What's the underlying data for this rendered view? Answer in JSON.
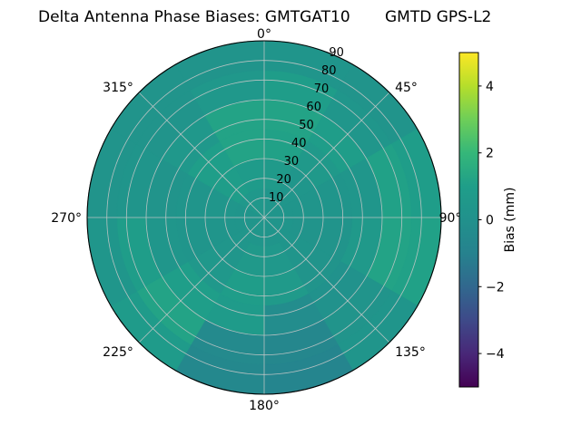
{
  "figure": {
    "title_left": "Delta Antenna Phase Biases: GMTGAT10",
    "title_right": "GMTD GPS-L2",
    "background": "#ffffff"
  },
  "chart_data": {
    "type": "heatmap",
    "subtype": "polar_filled_contour",
    "title": "Delta Antenna Phase Biases: GMTGAT10        GMTD GPS-L2",
    "theta_zero_location": "N",
    "theta_direction": "clockwise",
    "angular_tick_deg": [
      0,
      45,
      90,
      135,
      180,
      225,
      270,
      315
    ],
    "angular_tick_labels": [
      "0°",
      "45°",
      "90°",
      "135°",
      "180°",
      "225°",
      "270°",
      "315°"
    ],
    "radial_ticks": [
      10,
      20,
      30,
      40,
      50,
      60,
      70,
      80,
      90
    ],
    "radial_max": 90,
    "radial_label_angle_deg": 22.5,
    "grid_on": true,
    "grid_color": "#c8c8c8",
    "spine_color": "#000000",
    "colormap_name": "viridis",
    "colormap_stops": [
      "#440154",
      "#482878",
      "#3e4a89",
      "#31688e",
      "#26828e",
      "#21918c",
      "#1f9e89",
      "#35b779",
      "#6ece58",
      "#b5de2b",
      "#fde725"
    ],
    "colorbar": {
      "label": "Bias (mm)",
      "min": -5,
      "max": 5,
      "tick_values": [
        -4,
        -2,
        0,
        2,
        4
      ],
      "tick_labels": [
        "−4",
        "−2",
        "0",
        "2",
        "4"
      ]
    },
    "field": {
      "units": "mm",
      "azimuth_bin_edges_deg": [
        0,
        30,
        60,
        90,
        120,
        150,
        180,
        210,
        240,
        270,
        300,
        330,
        360
      ],
      "zenith_bin_edges_deg": [
        0,
        15,
        30,
        45,
        60,
        75,
        90
      ],
      "bias_mm_rings": [
        [
          0.4,
          0.4,
          0.3,
          0.3,
          0.3,
          0.3,
          0.4,
          0.4,
          0.3,
          0.3,
          0.5,
          0.5
        ],
        [
          0.7,
          0.4,
          0.3,
          0.2,
          0.3,
          0.5,
          0.6,
          0.4,
          0.3,
          0.4,
          0.9,
          0.8
        ],
        [
          1.1,
          0.6,
          0.3,
          0.2,
          0.2,
          0.7,
          0.9,
          0.5,
          0.3,
          0.3,
          1.0,
          1.2
        ],
        [
          1.2,
          0.9,
          0.4,
          0.6,
          0.1,
          -0.3,
          0.8,
          1.0,
          0.4,
          0.2,
          0.5,
          1.2
        ],
        [
          0.9,
          0.4,
          1.1,
          1.2,
          0.2,
          -0.7,
          -0.5,
          1.2,
          0.9,
          0.3,
          0.2,
          0.5
        ],
        [
          0.3,
          0.2,
          0.9,
          1.1,
          0.3,
          -0.8,
          -0.6,
          0.8,
          0.4,
          0.2,
          0.2,
          0.2
        ]
      ]
    }
  }
}
